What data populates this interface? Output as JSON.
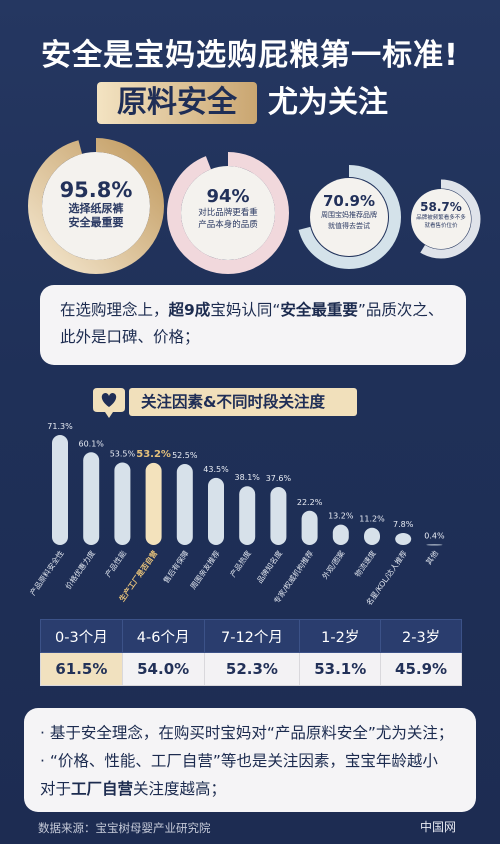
{
  "header": {
    "title_line1": "安全是宝妈选购屁粮第一标准!",
    "title_highlight": "原料安全",
    "title_rest": "尤为关注"
  },
  "rings": [
    {
      "pct": "95.8%",
      "caption_lines": [
        "选择纸尿裤",
        "安全最重要"
      ],
      "value": 95.8
    },
    {
      "pct": "94%",
      "caption_lines": [
        "对比品牌更看重",
        "产品本身的品质"
      ],
      "value": 94
    },
    {
      "pct": "70.9%",
      "caption_lines": [
        "周围宝妈推荐品牌",
        "就值得去尝试"
      ],
      "value": 70.9
    },
    {
      "pct": "58.7%",
      "caption_lines": [
        "品牌被频繁看多不多",
        "就看售价位价"
      ],
      "value": 58.7
    }
  ],
  "summary1": {
    "p1": "在选购理念上，",
    "b1": "超9成",
    "p2": "宝妈认同“",
    "b2": "安全最重要",
    "p3": "”品质次之、",
    "line2": "此外是口碑、价格；"
  },
  "chart_data": {
    "type": "bar",
    "title": "关注因素&不同时段关注度",
    "categories": [
      "产品原料安全性",
      "价格优惠力度",
      "产品性能",
      "生产工厂是否自营",
      "售后有保障",
      "周围亲友推荐",
      "产品热度",
      "品牌知名度",
      "专家/权威机构推荐",
      "外观/图案",
      "物流速度",
      "名星/KOL/达人推荐",
      "其他"
    ],
    "values": [
      71.3,
      60.1,
      53.5,
      53.2,
      52.5,
      43.5,
      38.1,
      37.6,
      22.2,
      13.2,
      11.2,
      7.8,
      0.4
    ],
    "value_labels": [
      "71.3%",
      "60.1%",
      "53.5%",
      "53.2%",
      "52.5%",
      "43.5%",
      "38.1%",
      "37.6%",
      "22.2%",
      "13.2%",
      "11.2%",
      "7.8%",
      "0.4%"
    ],
    "highlight_index": 3,
    "ylim": [
      0,
      80
    ],
    "colors": {
      "bar": "#d7e1ea",
      "highlight": "#f3e2bc",
      "highlight_label": "#e4c07a"
    },
    "age_table": {
      "columns": [
        "0-3个月",
        "4-6个月",
        "7-12个月",
        "1-2岁",
        "2-3岁"
      ],
      "values": [
        "61.5%",
        "54.0%",
        "52.3%",
        "53.1%",
        "45.9%"
      ],
      "values_numeric": [
        61.5,
        54.0,
        52.3,
        53.1,
        45.9
      ]
    }
  },
  "summary2": {
    "l1": "· 基于安全理念，在购买时宝妈对“产品原料安全”尤为关注；",
    "l2": "· “价格、性能、工厂自营”等也是关注因素，宝宝年龄越小",
    "l3a": "对于",
    "l3b": "工厂自营",
    "l3c": "关注度越高；"
  },
  "footer": {
    "source": "数据来源：宝宝树母婴产业研究院",
    "brand": "中国网"
  }
}
